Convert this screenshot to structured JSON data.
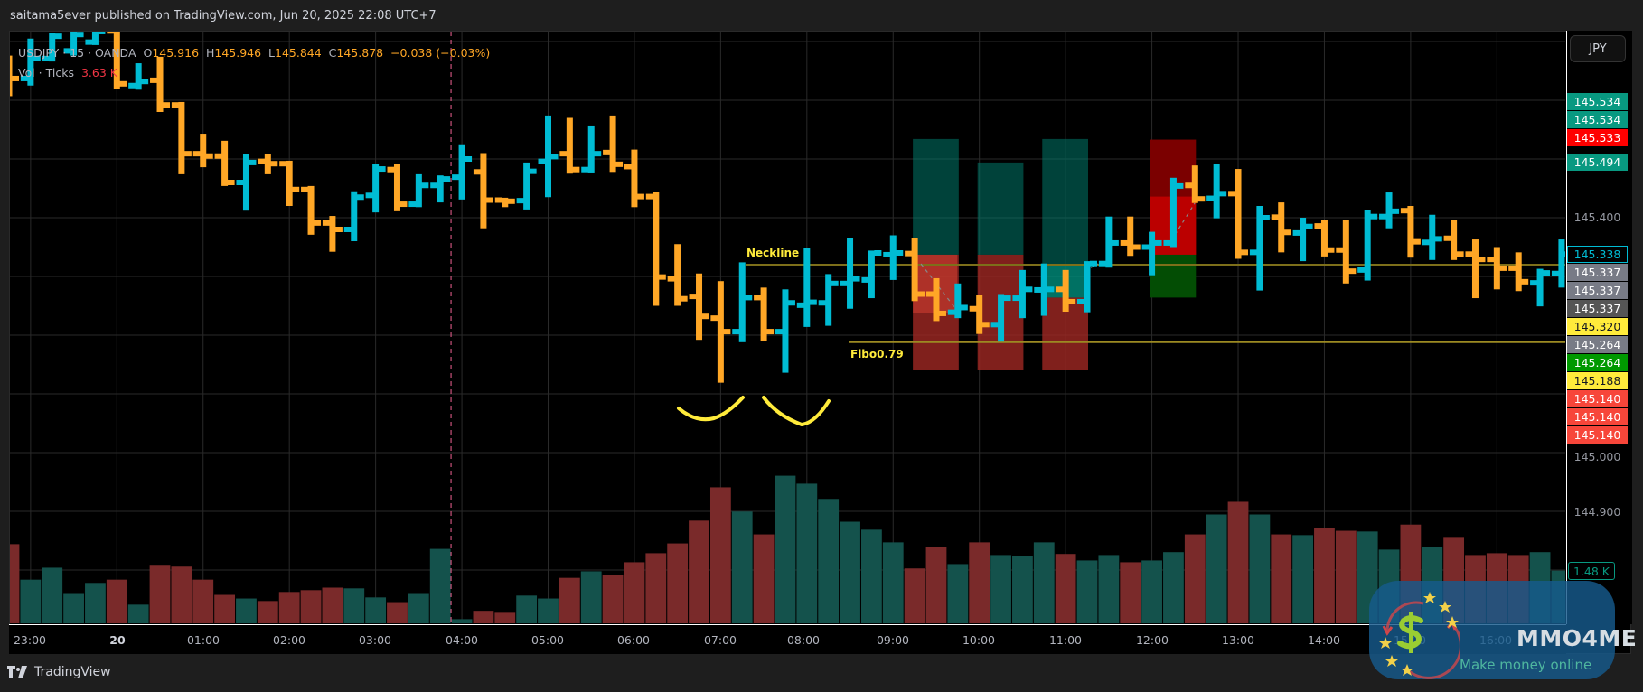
{
  "header": {
    "published": "saitama5ever published on TradingView.com, Jun 20, 2025 22:08 UTC+7"
  },
  "legend": {
    "symbol": "USDJPY · 15 · OANDA",
    "o_label": "O",
    "o": "145.916",
    "h_label": "H",
    "h": "145.946",
    "l_label": "L",
    "l": "145.844",
    "c_label": "C",
    "c": "145.878",
    "change": "−0.038 (−0.03%)",
    "vol_label": "Vol · Ticks",
    "vol_value": "3.63 K"
  },
  "currency_button": "JPY",
  "price_labels": [
    {
      "text": "145.534",
      "bg": "#089981",
      "fg": "#ffffff"
    },
    {
      "text": "145.534",
      "bg": "#089981",
      "fg": "#ffffff"
    },
    {
      "text": "145.533",
      "bg": "#ff0000",
      "fg": "#ffffff"
    },
    {
      "text": "145.494",
      "bg": "#089981",
      "fg": "#ffffff"
    },
    {
      "text": "145.338",
      "bg": "#000000",
      "fg": "#00bcd4"
    },
    {
      "text": "145.337",
      "bg": "#787b86",
      "fg": "#ffffff"
    },
    {
      "text": "145.337",
      "bg": "#787b86",
      "fg": "#ffffff"
    },
    {
      "text": "145.337",
      "bg": "#555555",
      "fg": "#ffffff"
    },
    {
      "text": "145.320",
      "bg": "#ffeb3b",
      "fg": "#131722"
    },
    {
      "text": "145.264",
      "bg": "#787b86",
      "fg": "#ffffff"
    },
    {
      "text": "145.264",
      "bg": "#009900",
      "fg": "#ffffff"
    },
    {
      "text": "145.188",
      "bg": "#ffeb3b",
      "fg": "#131722"
    },
    {
      "text": "145.140",
      "bg": "#f7463a",
      "fg": "#ffffff"
    },
    {
      "text": "145.140",
      "bg": "#f7463a",
      "fg": "#ffffff"
    },
    {
      "text": "145.140",
      "bg": "#f7463a",
      "fg": "#ffffff"
    }
  ],
  "axis_ticks": [
    "145.400",
    "145.000",
    "144.900"
  ],
  "volume_label": "1.48 K",
  "time_labels": [
    "23:00",
    "20",
    "01:00",
    "02:00",
    "03:00",
    "04:00",
    "05:00",
    "06:00",
    "07:00",
    "08:00",
    "09:00",
    "10:00",
    "11:00",
    "12:00",
    "13:00",
    "14:00",
    "15:00",
    "16:00"
  ],
  "annotations": {
    "neckline": "Neckline",
    "fibo": "Fibo0.79"
  },
  "footer": {
    "brand": "TradingView"
  },
  "watermark": {
    "title": "MMO4ME",
    "subtitle": "Make money online"
  },
  "colors": {
    "up": "#00bcd4",
    "down": "#ffa726",
    "vol_up": "#14524c",
    "vol_down": "#7a2a2a",
    "line": "#8c7d1f",
    "marker": "#ffeb3b"
  },
  "chart_data": {
    "type": "ohlc",
    "symbol": "USDJPY",
    "interval": "15",
    "y_range": [
      144.8,
      145.72
    ],
    "volume_unit": "K",
    "columns": [
      "time",
      "open",
      "high",
      "low",
      "close",
      "volume"
    ],
    "bars": [
      [
        "22:45",
        145.66,
        145.676,
        145.607,
        145.637,
        2.21
      ],
      [
        "23:00",
        145.637,
        145.705,
        145.625,
        145.671,
        1.23
      ],
      [
        "23:15",
        145.671,
        145.714,
        145.666,
        145.709,
        1.56
      ],
      [
        "23:30",
        145.684,
        145.72,
        145.676,
        145.712,
        0.86
      ],
      [
        "23:45",
        145.699,
        145.72,
        145.694,
        145.717,
        1.14
      ],
      [
        "00:00",
        145.718,
        145.718,
        145.62,
        145.628,
        1.23
      ],
      [
        "00:15",
        145.625,
        145.663,
        145.618,
        145.632,
        0.54
      ],
      [
        "00:30",
        145.634,
        145.674,
        145.58,
        145.592,
        1.64
      ],
      [
        "00:45",
        145.592,
        145.597,
        145.474,
        145.509,
        1.59
      ],
      [
        "01:00",
        145.509,
        145.543,
        145.486,
        145.505,
        1.23
      ],
      [
        "01:15",
        145.505,
        145.531,
        145.454,
        145.46,
        0.81
      ],
      [
        "01:30",
        145.46,
        145.508,
        145.412,
        145.494,
        0.71
      ],
      [
        "01:45",
        145.496,
        145.509,
        145.474,
        145.492,
        0.64
      ],
      [
        "02:00",
        145.492,
        145.497,
        145.42,
        145.448,
        0.89
      ],
      [
        "02:15",
        145.448,
        145.454,
        145.371,
        145.391,
        0.94
      ],
      [
        "02:30",
        145.391,
        145.403,
        145.342,
        145.38,
        1.01
      ],
      [
        "02:45",
        145.38,
        145.445,
        145.36,
        145.435,
        0.99
      ],
      [
        "03:00",
        145.438,
        145.492,
        145.409,
        145.483,
        0.74
      ],
      [
        "03:15",
        145.482,
        145.491,
        145.411,
        145.423,
        0.61
      ],
      [
        "03:30",
        145.423,
        145.474,
        145.418,
        145.455,
        0.86
      ],
      [
        "03:45",
        145.455,
        145.472,
        145.426,
        145.466,
        2.08
      ],
      [
        "04:00",
        145.469,
        145.525,
        145.431,
        145.5,
        0.14
      ],
      [
        "04:15",
        145.478,
        145.51,
        145.382,
        145.43,
        0.37
      ],
      [
        "04:30",
        145.43,
        145.434,
        145.418,
        145.428,
        0.34
      ],
      [
        "04:45",
        145.429,
        145.494,
        145.414,
        145.479,
        0.79
      ],
      [
        "05:00",
        145.496,
        145.574,
        145.435,
        145.504,
        0.71
      ],
      [
        "05:15",
        145.509,
        145.57,
        145.475,
        145.482,
        1.28
      ],
      [
        "05:30",
        145.482,
        145.557,
        145.477,
        145.509,
        1.46
      ],
      [
        "05:45",
        145.511,
        145.574,
        145.478,
        145.491,
        1.36
      ],
      [
        "06:00",
        145.487,
        145.516,
        145.418,
        145.436,
        1.71
      ],
      [
        "06:15",
        145.436,
        145.444,
        145.25,
        145.299,
        1.96
      ],
      [
        "06:30",
        145.296,
        145.355,
        145.25,
        145.262,
        2.23
      ],
      [
        "06:45",
        145.266,
        145.305,
        145.192,
        145.232,
        2.86
      ],
      [
        "07:00",
        145.229,
        145.292,
        145.119,
        145.206,
        3.78
      ],
      [
        "07:15",
        145.206,
        145.324,
        145.188,
        145.264,
        3.11
      ],
      [
        "07:30",
        145.264,
        145.281,
        145.19,
        145.206,
        2.48
      ],
      [
        "07:45",
        145.206,
        145.278,
        145.136,
        145.255,
        4.1
      ],
      [
        "08:00",
        145.251,
        145.349,
        145.214,
        145.256,
        3.88
      ],
      [
        "08:15",
        145.255,
        145.304,
        145.216,
        145.288,
        3.46
      ],
      [
        "08:30",
        145.288,
        145.365,
        145.245,
        145.296,
        2.83
      ],
      [
        "08:45",
        145.294,
        145.344,
        145.263,
        145.34,
        2.61
      ],
      [
        "09:00",
        145.337,
        145.37,
        145.294,
        145.34,
        2.26
      ],
      [
        "09:15",
        145.339,
        145.366,
        145.258,
        145.27,
        1.54
      ],
      [
        "09:30",
        145.27,
        145.297,
        145.224,
        145.237,
        2.13
      ],
      [
        "09:45",
        145.239,
        145.288,
        145.229,
        145.247,
        1.66
      ],
      [
        "10:00",
        145.245,
        145.268,
        145.202,
        145.218,
        2.26
      ],
      [
        "10:15",
        145.218,
        145.27,
        145.189,
        145.263,
        1.91
      ],
      [
        "10:30",
        145.263,
        145.311,
        145.229,
        145.278,
        1.89
      ],
      [
        "10:45",
        145.277,
        145.322,
        145.233,
        145.278,
        2.26
      ],
      [
        "11:00",
        145.278,
        145.311,
        145.24,
        145.257,
        1.94
      ],
      [
        "11:15",
        145.257,
        145.326,
        145.239,
        145.322,
        1.76
      ],
      [
        "11:30",
        145.322,
        145.402,
        145.315,
        145.357,
        1.91
      ],
      [
        "11:45",
        145.357,
        145.402,
        145.335,
        145.35,
        1.71
      ],
      [
        "12:00",
        145.35,
        145.376,
        145.302,
        145.357,
        1.76
      ],
      [
        "12:15",
        145.357,
        145.468,
        145.35,
        145.454,
        1.99
      ],
      [
        "12:30",
        145.455,
        145.489,
        145.425,
        145.432,
        2.48
      ],
      [
        "12:45",
        145.433,
        145.492,
        145.399,
        145.441,
        3.03
      ],
      [
        "13:00",
        145.441,
        145.483,
        145.33,
        145.341,
        3.38
      ],
      [
        "13:15",
        145.341,
        145.42,
        145.276,
        145.4,
        3.03
      ],
      [
        "13:30",
        145.401,
        145.426,
        145.341,
        145.375,
        2.48
      ],
      [
        "13:45",
        145.374,
        145.4,
        145.326,
        145.385,
        2.46
      ],
      [
        "14:00",
        145.386,
        145.396,
        145.334,
        145.345,
        2.66
      ],
      [
        "14:15",
        145.345,
        145.396,
        145.288,
        145.309,
        2.58
      ],
      [
        "14:30",
        145.311,
        145.413,
        145.293,
        145.402,
        2.56
      ],
      [
        "14:45",
        145.402,
        145.443,
        145.382,
        145.411,
        2.06
      ],
      [
        "15:00",
        145.412,
        145.42,
        145.332,
        145.359,
        2.75
      ],
      [
        "15:15",
        145.358,
        145.405,
        145.328,
        145.364,
        2.13
      ],
      [
        "15:30",
        145.365,
        145.396,
        145.328,
        145.338,
        2.41
      ],
      [
        "15:45",
        145.338,
        145.363,
        145.263,
        145.329,
        1.91
      ],
      [
        "16:00",
        145.329,
        145.35,
        145.278,
        145.314,
        1.96
      ],
      [
        "16:15",
        145.314,
        145.341,
        145.275,
        145.291,
        1.91
      ],
      [
        "16:30",
        145.289,
        145.313,
        145.249,
        145.306,
        1.99
      ],
      [
        "16:45",
        145.305,
        145.363,
        145.281,
        145.338,
        1.48
      ]
    ],
    "horizontal_lines": [
      {
        "label": "Neckline",
        "price": 145.32,
        "from": "07:15"
      },
      {
        "label": "Fibo0.79",
        "price": 145.188,
        "from": "09:00"
      }
    ],
    "positions": [
      {
        "side": "long",
        "from": "09:15",
        "to": "09:45",
        "target": 145.534,
        "entry": 145.337,
        "stop": 145.14
      },
      {
        "side": "long",
        "from": "10:00",
        "to": "10:30",
        "target": 145.494,
        "entry": 145.337,
        "stop": 145.14
      },
      {
        "side": "long",
        "from": "10:45",
        "to": "11:15",
        "target": 145.534,
        "entry": 145.264,
        "stop": 145.14
      },
      {
        "side": "short",
        "from": "12:00",
        "to": "12:30",
        "stop": 145.533,
        "entry": 145.337,
        "target": 145.264
      }
    ],
    "vertical_marker": "04:00"
  }
}
